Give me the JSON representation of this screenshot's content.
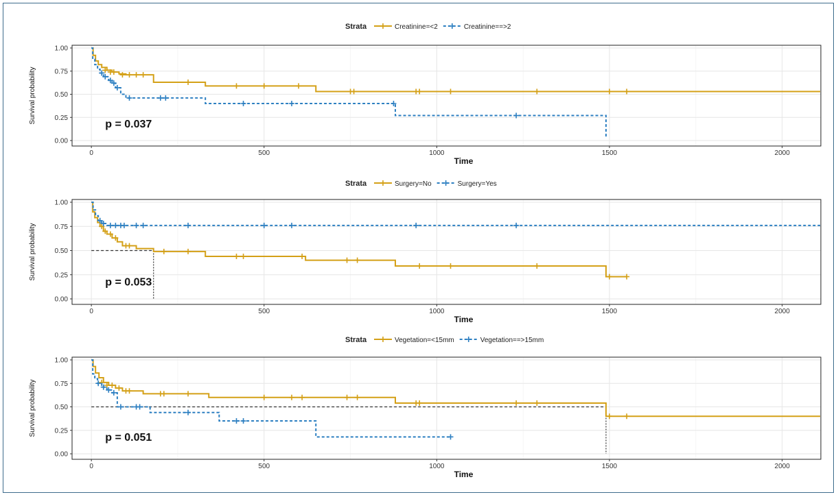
{
  "chart_data": [
    {
      "type": "line",
      "legend_title": "Strata",
      "legend_position": "top",
      "xlabel": "Time",
      "ylabel": "Survival probability",
      "xlim": [
        -40,
        2110
      ],
      "ylim": [
        0,
        1
      ],
      "x_ticks": [
        0,
        500,
        1000,
        1500,
        2000
      ],
      "y_ticks": [
        "0.00",
        "0.25",
        "0.50",
        "0.75",
        "1.00"
      ],
      "p_value": "p = 0.037",
      "median_line": null,
      "series": [
        {
          "name": "Creatinine=<2",
          "color": "#d4a017",
          "dash": "",
          "steps": [
            [
              0,
              1.0
            ],
            [
              5,
              0.92
            ],
            [
              12,
              0.86
            ],
            [
              20,
              0.82
            ],
            [
              30,
              0.79
            ],
            [
              45,
              0.76
            ],
            [
              60,
              0.74
            ],
            [
              80,
              0.72
            ],
            [
              100,
              0.71
            ],
            [
              180,
              0.63
            ],
            [
              330,
              0.59
            ],
            [
              650,
              0.53
            ],
            [
              2110,
              0.53
            ]
          ],
          "censors": [
            [
              40,
              0.76
            ],
            [
              55,
              0.74
            ],
            [
              65,
              0.74
            ],
            [
              90,
              0.71
            ],
            [
              110,
              0.71
            ],
            [
              130,
              0.71
            ],
            [
              150,
              0.71
            ],
            [
              280,
              0.63
            ],
            [
              420,
              0.59
            ],
            [
              500,
              0.59
            ],
            [
              600,
              0.59
            ],
            [
              750,
              0.53
            ],
            [
              760,
              0.53
            ],
            [
              940,
              0.53
            ],
            [
              950,
              0.53
            ],
            [
              1040,
              0.53
            ],
            [
              1290,
              0.53
            ],
            [
              1500,
              0.53
            ],
            [
              1550,
              0.53
            ]
          ]
        },
        {
          "name": "Creatinine==>2",
          "color": "#2c7fc1",
          "dash": "4,3",
          "steps": [
            [
              0,
              1.0
            ],
            [
              4,
              0.88
            ],
            [
              10,
              0.82
            ],
            [
              18,
              0.77
            ],
            [
              25,
              0.73
            ],
            [
              35,
              0.69
            ],
            [
              50,
              0.65
            ],
            [
              60,
              0.62
            ],
            [
              70,
              0.57
            ],
            [
              85,
              0.5
            ],
            [
              100,
              0.46
            ],
            [
              330,
              0.4
            ],
            [
              880,
              0.27
            ],
            [
              1490,
              0.03
            ]
          ],
          "censors": [
            [
              30,
              0.73
            ],
            [
              40,
              0.69
            ],
            [
              55,
              0.65
            ],
            [
              65,
              0.62
            ],
            [
              75,
              0.57
            ],
            [
              110,
              0.46
            ],
            [
              200,
              0.46
            ],
            [
              215,
              0.46
            ],
            [
              440,
              0.4
            ],
            [
              580,
              0.4
            ],
            [
              875,
              0.4
            ],
            [
              1230,
              0.27
            ]
          ]
        }
      ]
    },
    {
      "type": "line",
      "legend_title": "Strata",
      "legend_position": "top",
      "xlabel": "Time",
      "ylabel": "Survival probability",
      "xlim": [
        -40,
        2110
      ],
      "ylim": [
        0,
        1
      ],
      "x_ticks": [
        0,
        500,
        1000,
        1500,
        2000
      ],
      "y_ticks": [
        "0.00",
        "0.25",
        "0.50",
        "0.75",
        "1.00"
      ],
      "p_value": "p = 0.053",
      "median_line": {
        "y": 0.5,
        "x": 180
      },
      "series": [
        {
          "name": "Surgery=No",
          "color": "#d4a017",
          "dash": "",
          "steps": [
            [
              0,
              1.0
            ],
            [
              4,
              0.9
            ],
            [
              10,
              0.84
            ],
            [
              18,
              0.79
            ],
            [
              25,
              0.75
            ],
            [
              35,
              0.7
            ],
            [
              45,
              0.67
            ],
            [
              60,
              0.63
            ],
            [
              75,
              0.59
            ],
            [
              90,
              0.55
            ],
            [
              130,
              0.52
            ],
            [
              180,
              0.49
            ],
            [
              330,
              0.44
            ],
            [
              620,
              0.4
            ],
            [
              880,
              0.34
            ],
            [
              1490,
              0.23
            ],
            [
              1550,
              0.23
            ]
          ],
          "censors": [
            [
              30,
              0.75
            ],
            [
              40,
              0.7
            ],
            [
              55,
              0.67
            ],
            [
              70,
              0.63
            ],
            [
              100,
              0.55
            ],
            [
              110,
              0.55
            ],
            [
              210,
              0.49
            ],
            [
              280,
              0.49
            ],
            [
              420,
              0.44
            ],
            [
              440,
              0.44
            ],
            [
              610,
              0.44
            ],
            [
              740,
              0.4
            ],
            [
              770,
              0.4
            ],
            [
              950,
              0.34
            ],
            [
              1040,
              0.34
            ],
            [
              1290,
              0.34
            ],
            [
              1500,
              0.23
            ],
            [
              1550,
              0.23
            ]
          ]
        },
        {
          "name": "Surgery=Yes",
          "color": "#2c7fc1",
          "dash": "4,3",
          "steps": [
            [
              0,
              1.0
            ],
            [
              5,
              0.92
            ],
            [
              12,
              0.86
            ],
            [
              20,
              0.81
            ],
            [
              30,
              0.78
            ],
            [
              45,
              0.76
            ],
            [
              2110,
              0.76
            ]
          ],
          "censors": [
            [
              25,
              0.81
            ],
            [
              35,
              0.78
            ],
            [
              55,
              0.76
            ],
            [
              70,
              0.76
            ],
            [
              85,
              0.76
            ],
            [
              95,
              0.76
            ],
            [
              130,
              0.76
            ],
            [
              150,
              0.76
            ],
            [
              280,
              0.76
            ],
            [
              500,
              0.76
            ],
            [
              580,
              0.76
            ],
            [
              940,
              0.76
            ],
            [
              1230,
              0.76
            ]
          ]
        }
      ]
    },
    {
      "type": "line",
      "legend_title": "Strata",
      "legend_position": "top",
      "xlabel": "Time",
      "ylabel": "Survival probability",
      "xlim": [
        -40,
        2110
      ],
      "ylim": [
        0,
        1
      ],
      "x_ticks": [
        0,
        500,
        1000,
        1500,
        2000
      ],
      "y_ticks": [
        "0.00",
        "0.25",
        "0.50",
        "0.75",
        "1.00"
      ],
      "p_value": "p = 0.051",
      "median_line": {
        "y": 0.5,
        "x": 1490
      },
      "series": [
        {
          "name": "Vegetation=<15mm",
          "color": "#d4a017",
          "dash": "",
          "steps": [
            [
              0,
              1.0
            ],
            [
              5,
              0.93
            ],
            [
              12,
              0.86
            ],
            [
              22,
              0.81
            ],
            [
              35,
              0.76
            ],
            [
              50,
              0.73
            ],
            [
              70,
              0.7
            ],
            [
              90,
              0.67
            ],
            [
              150,
              0.64
            ],
            [
              340,
              0.6
            ],
            [
              880,
              0.54
            ],
            [
              1490,
              0.4
            ],
            [
              2110,
              0.4
            ]
          ],
          "censors": [
            [
              30,
              0.76
            ],
            [
              45,
              0.73
            ],
            [
              60,
              0.73
            ],
            [
              80,
              0.7
            ],
            [
              100,
              0.67
            ],
            [
              110,
              0.67
            ],
            [
              200,
              0.64
            ],
            [
              210,
              0.64
            ],
            [
              280,
              0.64
            ],
            [
              500,
              0.6
            ],
            [
              580,
              0.6
            ],
            [
              610,
              0.6
            ],
            [
              740,
              0.6
            ],
            [
              770,
              0.6
            ],
            [
              940,
              0.54
            ],
            [
              950,
              0.54
            ],
            [
              1230,
              0.54
            ],
            [
              1290,
              0.54
            ],
            [
              1500,
              0.4
            ],
            [
              1550,
              0.4
            ]
          ]
        },
        {
          "name": "Vegetation==>15mm",
          "color": "#2c7fc1",
          "dash": "4,3",
          "steps": [
            [
              0,
              1.0
            ],
            [
              4,
              0.85
            ],
            [
              10,
              0.8
            ],
            [
              18,
              0.75
            ],
            [
              30,
              0.71
            ],
            [
              45,
              0.68
            ],
            [
              60,
              0.65
            ],
            [
              75,
              0.5
            ],
            [
              170,
              0.44
            ],
            [
              370,
              0.35
            ],
            [
              650,
              0.18
            ],
            [
              1040,
              0.18
            ]
          ],
          "censors": [
            [
              20,
              0.75
            ],
            [
              35,
              0.71
            ],
            [
              50,
              0.68
            ],
            [
              65,
              0.65
            ],
            [
              85,
              0.5
            ],
            [
              130,
              0.5
            ],
            [
              140,
              0.5
            ],
            [
              280,
              0.44
            ],
            [
              420,
              0.35
            ],
            [
              440,
              0.35
            ],
            [
              1040,
              0.18
            ]
          ]
        }
      ]
    }
  ]
}
